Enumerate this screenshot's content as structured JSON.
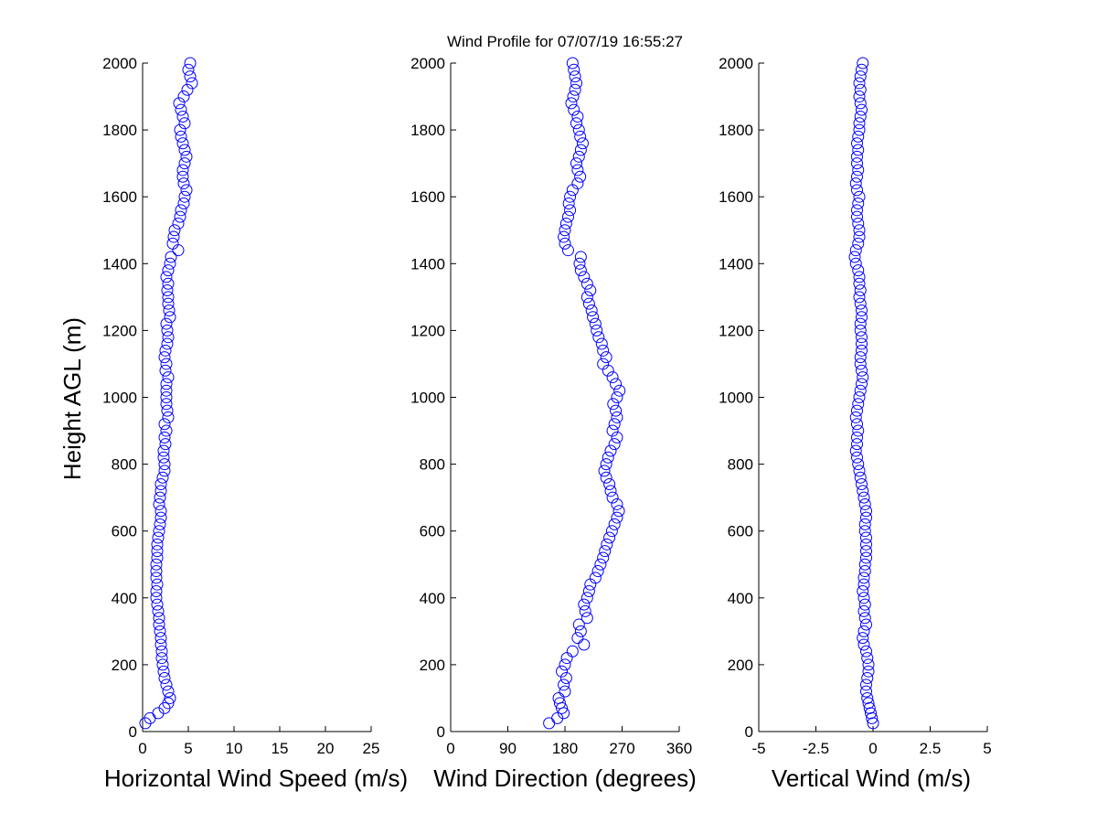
{
  "figure": {
    "title": "Wind Profile for  07/07/19 16:55:27",
    "ylabel": "Height AGL (m)",
    "marker_color": "#0000ff",
    "marker": "circle"
  },
  "chart_data": [
    {
      "type": "scatter",
      "title": "Wind Profile for  07/07/19 16:55:27",
      "xlabel": "Horizontal Wind Speed (m/s)",
      "ylabel": "Height AGL (m)",
      "xlim": [
        0,
        25
      ],
      "ylim": [
        0,
        2000
      ],
      "xticks": [
        "0",
        "5",
        "10",
        "15",
        "20",
        "25"
      ],
      "yticks": [
        "0",
        "200",
        "400",
        "600",
        "800",
        "1000",
        "1200",
        "1400",
        "1600",
        "1800",
        "2000"
      ],
      "grid": false,
      "profile": [
        [
          25,
          0.3
        ],
        [
          40,
          0.8
        ],
        [
          55,
          1.7
        ],
        [
          70,
          2.4
        ],
        [
          85,
          2.8
        ],
        [
          100,
          3.0
        ],
        [
          120,
          2.8
        ],
        [
          140,
          2.6
        ],
        [
          160,
          2.4
        ],
        [
          180,
          2.3
        ],
        [
          200,
          2.2
        ],
        [
          220,
          2.1
        ],
        [
          240,
          2.1
        ],
        [
          260,
          2.0
        ],
        [
          280,
          2.0
        ],
        [
          300,
          1.9
        ],
        [
          320,
          1.8
        ],
        [
          340,
          1.8
        ],
        [
          360,
          1.7
        ],
        [
          380,
          1.6
        ],
        [
          400,
          1.5
        ],
        [
          420,
          1.5
        ],
        [
          440,
          1.6
        ],
        [
          460,
          1.5
        ],
        [
          480,
          1.5
        ],
        [
          500,
          1.5
        ],
        [
          520,
          1.6
        ],
        [
          540,
          1.6
        ],
        [
          560,
          1.6
        ],
        [
          580,
          1.7
        ],
        [
          600,
          1.8
        ],
        [
          620,
          1.9
        ],
        [
          640,
          2.0
        ],
        [
          660,
          2.0
        ],
        [
          680,
          1.8
        ],
        [
          700,
          1.9
        ],
        [
          720,
          2.0
        ],
        [
          740,
          2.0
        ],
        [
          760,
          2.2
        ],
        [
          780,
          2.4
        ],
        [
          800,
          2.4
        ],
        [
          820,
          2.3
        ],
        [
          840,
          2.3
        ],
        [
          860,
          2.5
        ],
        [
          880,
          2.4
        ],
        [
          900,
          2.6
        ],
        [
          920,
          2.4
        ],
        [
          940,
          2.8
        ],
        [
          960,
          2.7
        ],
        [
          980,
          2.6
        ],
        [
          1000,
          2.6
        ],
        [
          1020,
          2.6
        ],
        [
          1040,
          2.6
        ],
        [
          1060,
          2.8
        ],
        [
          1080,
          2.5
        ],
        [
          1100,
          2.6
        ],
        [
          1120,
          2.4
        ],
        [
          1140,
          2.5
        ],
        [
          1160,
          2.7
        ],
        [
          1180,
          2.8
        ],
        [
          1200,
          2.7
        ],
        [
          1220,
          2.6
        ],
        [
          1240,
          3.0
        ],
        [
          1260,
          2.9
        ],
        [
          1280,
          2.8
        ],
        [
          1300,
          2.8
        ],
        [
          1320,
          2.7
        ],
        [
          1340,
          2.8
        ],
        [
          1360,
          2.6
        ],
        [
          1380,
          2.8
        ],
        [
          1400,
          3.0
        ],
        [
          1420,
          3.1
        ],
        [
          1440,
          3.9
        ],
        [
          1460,
          3.3
        ],
        [
          1480,
          3.4
        ],
        [
          1500,
          3.5
        ],
        [
          1520,
          3.9
        ],
        [
          1540,
          4.1
        ],
        [
          1560,
          4.2
        ],
        [
          1580,
          4.5
        ],
        [
          1600,
          4.6
        ],
        [
          1620,
          4.8
        ],
        [
          1640,
          4.5
        ],
        [
          1660,
          4.4
        ],
        [
          1680,
          4.4
        ],
        [
          1700,
          4.6
        ],
        [
          1720,
          4.8
        ],
        [
          1740,
          4.6
        ],
        [
          1760,
          4.4
        ],
        [
          1780,
          4.2
        ],
        [
          1800,
          4.1
        ],
        [
          1820,
          4.6
        ],
        [
          1840,
          4.4
        ],
        [
          1860,
          4.2
        ],
        [
          1880,
          4.0
        ],
        [
          1900,
          4.5
        ],
        [
          1920,
          4.9
        ],
        [
          1940,
          5.4
        ],
        [
          1960,
          5.2
        ],
        [
          1980,
          5.0
        ],
        [
          2000,
          5.2
        ]
      ]
    },
    {
      "type": "scatter",
      "xlabel": "Wind Direction (degrees)",
      "xlim": [
        0,
        360
      ],
      "ylim": [
        0,
        2000
      ],
      "xticks": [
        "0",
        "90",
        "180",
        "270",
        "360"
      ],
      "yticks": [
        "0",
        "200",
        "400",
        "600",
        "800",
        "1000",
        "1200",
        "1400",
        "1600",
        "1800",
        "2000"
      ],
      "grid": false,
      "profile": [
        [
          25,
          155
        ],
        [
          40,
          168
        ],
        [
          55,
          178
        ],
        [
          70,
          175
        ],
        [
          85,
          172
        ],
        [
          100,
          170
        ],
        [
          120,
          180
        ],
        [
          140,
          178
        ],
        [
          160,
          182
        ],
        [
          180,
          175
        ],
        [
          200,
          180
        ],
        [
          220,
          183
        ],
        [
          240,
          192
        ],
        [
          260,
          210
        ],
        [
          280,
          200
        ],
        [
          300,
          205
        ],
        [
          320,
          202
        ],
        [
          340,
          215
        ],
        [
          360,
          212
        ],
        [
          380,
          210
        ],
        [
          400,
          215
        ],
        [
          420,
          218
        ],
        [
          440,
          220
        ],
        [
          460,
          228
        ],
        [
          480,
          232
        ],
        [
          500,
          236
        ],
        [
          520,
          240
        ],
        [
          540,
          243
        ],
        [
          560,
          246
        ],
        [
          580,
          250
        ],
        [
          600,
          254
        ],
        [
          620,
          258
        ],
        [
          640,
          262
        ],
        [
          660,
          265
        ],
        [
          680,
          262
        ],
        [
          700,
          255
        ],
        [
          720,
          252
        ],
        [
          740,
          250
        ],
        [
          760,
          245
        ],
        [
          780,
          242
        ],
        [
          800,
          245
        ],
        [
          820,
          248
        ],
        [
          840,
          252
        ],
        [
          860,
          258
        ],
        [
          880,
          262
        ],
        [
          900,
          255
        ],
        [
          920,
          258
        ],
        [
          940,
          262
        ],
        [
          960,
          260
        ],
        [
          980,
          256
        ],
        [
          1000,
          262
        ],
        [
          1020,
          266
        ],
        [
          1040,
          260
        ],
        [
          1060,
          255
        ],
        [
          1080,
          248
        ],
        [
          1100,
          240
        ],
        [
          1120,
          245
        ],
        [
          1140,
          240
        ],
        [
          1160,
          238
        ],
        [
          1180,
          233
        ],
        [
          1200,
          230
        ],
        [
          1220,
          228
        ],
        [
          1240,
          224
        ],
        [
          1260,
          222
        ],
        [
          1280,
          218
        ],
        [
          1300,
          215
        ],
        [
          1320,
          220
        ],
        [
          1340,
          215
        ],
        [
          1360,
          210
        ],
        [
          1380,
          205
        ],
        [
          1400,
          203
        ],
        [
          1420,
          205
        ],
        [
          1440,
          185
        ],
        [
          1460,
          180
        ],
        [
          1480,
          178
        ],
        [
          1500,
          180
        ],
        [
          1520,
          182
        ],
        [
          1540,
          185
        ],
        [
          1560,
          188
        ],
        [
          1580,
          186
        ],
        [
          1600,
          188
        ],
        [
          1620,
          192
        ],
        [
          1640,
          200
        ],
        [
          1660,
          204
        ],
        [
          1680,
          200
        ],
        [
          1700,
          198
        ],
        [
          1720,
          202
        ],
        [
          1740,
          205
        ],
        [
          1760,
          208
        ],
        [
          1780,
          204
        ],
        [
          1800,
          202
        ],
        [
          1820,
          198
        ],
        [
          1840,
          200
        ],
        [
          1860,
          194
        ],
        [
          1880,
          190
        ],
        [
          1900,
          193
        ],
        [
          1920,
          196
        ],
        [
          1940,
          198
        ],
        [
          1960,
          196
        ],
        [
          1980,
          194
        ],
        [
          2000,
          192
        ]
      ]
    },
    {
      "type": "scatter",
      "xlabel": "Vertical Wind (m/s)",
      "xlim": [
        -5,
        5
      ],
      "ylim": [
        0,
        2000
      ],
      "xticks": [
        "-5",
        "-2.5",
        "0",
        "2.5",
        "5"
      ],
      "yticks": [
        "0",
        "200",
        "400",
        "600",
        "800",
        "1000",
        "1200",
        "1400",
        "1600",
        "1800",
        "2000"
      ],
      "grid": false,
      "profile": [
        [
          25,
          0.0
        ],
        [
          40,
          -0.05
        ],
        [
          55,
          -0.1
        ],
        [
          70,
          -0.15
        ],
        [
          85,
          -0.2
        ],
        [
          100,
          -0.25
        ],
        [
          120,
          -0.3
        ],
        [
          140,
          -0.3
        ],
        [
          160,
          -0.25
        ],
        [
          180,
          -0.2
        ],
        [
          200,
          -0.2
        ],
        [
          220,
          -0.25
        ],
        [
          240,
          -0.3
        ],
        [
          260,
          -0.4
        ],
        [
          280,
          -0.45
        ],
        [
          300,
          -0.4
        ],
        [
          320,
          -0.3
        ],
        [
          340,
          -0.35
        ],
        [
          360,
          -0.4
        ],
        [
          380,
          -0.35
        ],
        [
          400,
          -0.4
        ],
        [
          420,
          -0.45
        ],
        [
          440,
          -0.4
        ],
        [
          460,
          -0.4
        ],
        [
          480,
          -0.35
        ],
        [
          500,
          -0.35
        ],
        [
          520,
          -0.3
        ],
        [
          540,
          -0.3
        ],
        [
          560,
          -0.3
        ],
        [
          580,
          -0.3
        ],
        [
          600,
          -0.35
        ],
        [
          620,
          -0.35
        ],
        [
          640,
          -0.3
        ],
        [
          660,
          -0.3
        ],
        [
          680,
          -0.35
        ],
        [
          700,
          -0.4
        ],
        [
          720,
          -0.45
        ],
        [
          740,
          -0.5
        ],
        [
          760,
          -0.55
        ],
        [
          780,
          -0.6
        ],
        [
          800,
          -0.65
        ],
        [
          820,
          -0.7
        ],
        [
          840,
          -0.75
        ],
        [
          860,
          -0.7
        ],
        [
          880,
          -0.7
        ],
        [
          900,
          -0.65
        ],
        [
          920,
          -0.7
        ],
        [
          940,
          -0.75
        ],
        [
          960,
          -0.7
        ],
        [
          980,
          -0.65
        ],
        [
          1000,
          -0.6
        ],
        [
          1020,
          -0.55
        ],
        [
          1040,
          -0.5
        ],
        [
          1060,
          -0.45
        ],
        [
          1080,
          -0.5
        ],
        [
          1100,
          -0.55
        ],
        [
          1120,
          -0.55
        ],
        [
          1140,
          -0.5
        ],
        [
          1160,
          -0.5
        ],
        [
          1180,
          -0.5
        ],
        [
          1200,
          -0.55
        ],
        [
          1220,
          -0.55
        ],
        [
          1240,
          -0.5
        ],
        [
          1260,
          -0.5
        ],
        [
          1280,
          -0.55
        ],
        [
          1300,
          -0.6
        ],
        [
          1320,
          -0.55
        ],
        [
          1340,
          -0.6
        ],
        [
          1360,
          -0.6
        ],
        [
          1380,
          -0.65
        ],
        [
          1400,
          -0.75
        ],
        [
          1420,
          -0.8
        ],
        [
          1440,
          -0.75
        ],
        [
          1460,
          -0.65
        ],
        [
          1480,
          -0.6
        ],
        [
          1500,
          -0.6
        ],
        [
          1520,
          -0.65
        ],
        [
          1540,
          -0.7
        ],
        [
          1560,
          -0.7
        ],
        [
          1580,
          -0.65
        ],
        [
          1600,
          -0.6
        ],
        [
          1620,
          -0.7
        ],
        [
          1640,
          -0.75
        ],
        [
          1660,
          -0.7
        ],
        [
          1680,
          -0.65
        ],
        [
          1700,
          -0.7
        ],
        [
          1720,
          -0.7
        ],
        [
          1740,
          -0.65
        ],
        [
          1760,
          -0.7
        ],
        [
          1780,
          -0.65
        ],
        [
          1800,
          -0.6
        ],
        [
          1820,
          -0.6
        ],
        [
          1840,
          -0.55
        ],
        [
          1860,
          -0.5
        ],
        [
          1880,
          -0.55
        ],
        [
          1900,
          -0.6
        ],
        [
          1920,
          -0.55
        ],
        [
          1940,
          -0.6
        ],
        [
          1960,
          -0.55
        ],
        [
          1980,
          -0.5
        ],
        [
          2000,
          -0.45
        ]
      ]
    }
  ]
}
